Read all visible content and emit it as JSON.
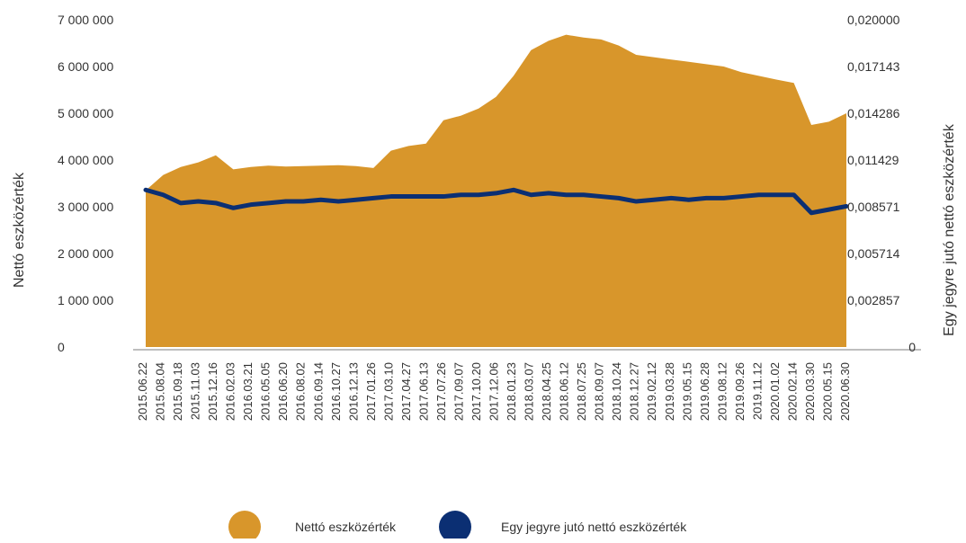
{
  "chart_data": {
    "type": "area",
    "colors": {
      "area": "#d8962b",
      "line": "#0b2f73",
      "axis": "#a8a8a8"
    },
    "y_left": {
      "label": "Nettó eszközérték",
      "ylim": [
        0,
        7000000
      ],
      "ticks": [
        0,
        1000000,
        2000000,
        3000000,
        4000000,
        5000000,
        6000000,
        7000000
      ],
      "tick_labels": [
        "0",
        "1 000 000",
        "2 000 000",
        "3 000 000",
        "4 000 000",
        "5 000 000",
        "6 000 000",
        "7 000 000"
      ]
    },
    "y_right": {
      "label": "Egy jegyre jutó nettó eszközérték",
      "ylim": [
        0,
        0.02
      ],
      "ticks": [
        0,
        0.002857,
        0.005714,
        0.008571,
        0.011429,
        0.014286,
        0.017143,
        0.02
      ],
      "tick_labels": [
        "0",
        "0,002857",
        "0,005714",
        "0,008571",
        "0,011429",
        "0,014286",
        "0,017143",
        "0,020000"
      ]
    },
    "x": {
      "tick_labels": [
        "2015.06.22",
        "2015.08.04",
        "2015.09.18",
        "2015.11.03",
        "2015.12.16",
        "2016.02.03",
        "2016.03.21",
        "2016.05.05",
        "2016.06.20",
        "2016.08.02",
        "2016.09.14",
        "2016.10.27",
        "2016.12.13",
        "2017.01.26",
        "2017.03.10",
        "2017.04.27",
        "2017.06.13",
        "2017.07.26",
        "2017.09.07",
        "2017.10.20",
        "2017.12.06",
        "2018.01.23",
        "2018.03.07",
        "2018.04.25",
        "2018.06.12",
        "2018.07.25",
        "2018.09.07",
        "2018.10.24",
        "2018.12.27",
        "2019.02.12",
        "2019.03.28",
        "2019.05.15",
        "2019.06.28",
        "2019.08.12",
        "2019.09.26",
        "2019.11.12",
        "2020.01.02",
        "2020.02.14",
        "2020.03.30",
        "2020.05.15",
        "2020.06.30"
      ]
    },
    "series": [
      {
        "name": "Nettó eszközérték",
        "type": "area",
        "axis": "left",
        "values": [
          3350000,
          3680000,
          3850000,
          3950000,
          4100000,
          3800000,
          3850000,
          3880000,
          3860000,
          3870000,
          3880000,
          3890000,
          3870000,
          3830000,
          4200000,
          4300000,
          4350000,
          4850000,
          4950000,
          5100000,
          5350000,
          5800000,
          6350000,
          6550000,
          6680000,
          6620000,
          6580000,
          6450000,
          6250000,
          6200000,
          6150000,
          6100000,
          6050000,
          6000000,
          5880000,
          5800000,
          5720000,
          5650000,
          4750000,
          4820000,
          5000000
        ]
      },
      {
        "name": "Egy jegyre jutó nettó eszközérték",
        "type": "line",
        "axis": "right",
        "values": [
          0.0096,
          0.0093,
          0.0088,
          0.0089,
          0.0088,
          0.0085,
          0.0087,
          0.0088,
          0.0089,
          0.0089,
          0.009,
          0.0089,
          0.009,
          0.0091,
          0.0092,
          0.0092,
          0.0092,
          0.0092,
          0.0093,
          0.0093,
          0.0094,
          0.0096,
          0.0093,
          0.0094,
          0.0093,
          0.0093,
          0.0092,
          0.0091,
          0.0089,
          0.009,
          0.0091,
          0.009,
          0.0091,
          0.0091,
          0.0092,
          0.0093,
          0.0093,
          0.0093,
          0.0082,
          0.0084,
          0.0086
        ]
      }
    ],
    "legend": {
      "position": "bottom",
      "items": [
        "Nettó eszközérték",
        "Egy jegyre jutó nettó eszközérték"
      ]
    }
  }
}
